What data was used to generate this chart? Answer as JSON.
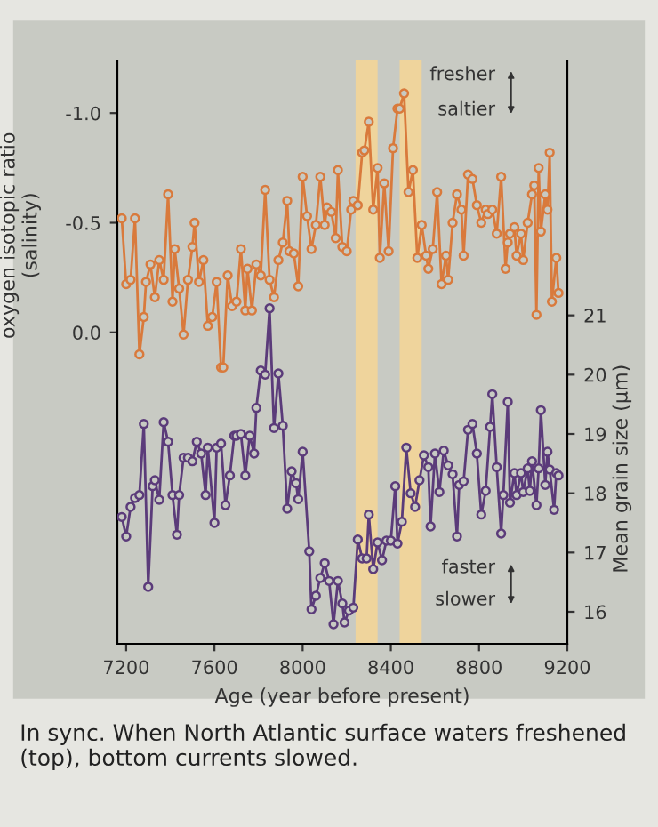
{
  "chart_data": {
    "type": "line",
    "marker": "circle",
    "line_style": "solid",
    "grid": false,
    "legend": false,
    "ylabel": "oxygen isotopic ratio\n(salinity)",
    "y2label": "Mean grain size (µm)",
    "xlabel": "Age (year before present)",
    "xlim": [
      7160,
      9200
    ],
    "xticks": [
      7200,
      7600,
      8000,
      8400,
      8800,
      9200
    ],
    "ylim": [
      1.42,
      -1.24
    ],
    "yticks": [
      {
        "value": -1.0,
        "label": "-1.0"
      },
      -0.5,
      {
        "value": 0.0,
        "label": "0.0"
      }
    ],
    "y2lim": [
      15.46,
      25.3
    ],
    "y2ticks": [
      16,
      17,
      18,
      19,
      20,
      21
    ],
    "bands": [
      {
        "axis": "x",
        "from": 8240,
        "to": 8340,
        "color": "#efd49c"
      },
      {
        "axis": "x",
        "from": 8440,
        "to": 8540,
        "color": "#efd49c"
      }
    ],
    "annotations": [
      "fresher",
      "saltier",
      "faster",
      "slower",
      "In sync. When North Atlantic surface waters freshened (top), bottom currents slowed."
    ],
    "series": [
      {
        "color": "#d97a3c",
        "x": [
          7180,
          7200,
          7220,
          7240,
          7260,
          7280,
          7290,
          7310,
          7330,
          7350,
          7370,
          7390,
          7410,
          7420,
          7440,
          7460,
          7480,
          7500,
          7510,
          7530,
          7550,
          7570,
          7590,
          7610,
          7630,
          7640,
          7660,
          7680,
          7700,
          7720,
          7740,
          7750,
          7770,
          7790,
          7810,
          7830,
          7850,
          7870,
          7890,
          7910,
          7930,
          7940,
          7960,
          7980,
          8000,
          8020,
          8040,
          8060,
          8080,
          8100,
          8110,
          8130,
          8150,
          8160,
          8180,
          8200,
          8220,
          8230,
          8250,
          8270,
          8280,
          8300,
          8320,
          8340,
          8350,
          8370,
          8390,
          8410,
          8430,
          8440,
          8460,
          8480,
          8500,
          8520,
          8540,
          8560,
          8570,
          8590,
          8610,
          8630,
          8650,
          8660,
          8680,
          8700,
          8720,
          8730,
          8750,
          8770,
          8790,
          8810,
          8830,
          8840,
          8860,
          8880,
          8900,
          8920,
          8930,
          8940,
          8960,
          8970,
          8990,
          9000,
          9020,
          9040,
          9050,
          9060,
          9070,
          9080,
          9100,
          9110,
          9120,
          9130,
          9150,
          9160
        ],
        "values": [
          -0.52,
          -0.22,
          -0.24,
          -0.52,
          0.1,
          -0.07,
          -0.23,
          -0.31,
          -0.16,
          -0.33,
          -0.24,
          -0.63,
          -0.14,
          -0.38,
          -0.2,
          0.01,
          -0.24,
          -0.39,
          -0.5,
          -0.23,
          -0.33,
          -0.03,
          -0.07,
          -0.23,
          0.16,
          0.16,
          -0.26,
          -0.12,
          -0.14,
          -0.38,
          -0.1,
          -0.29,
          -0.1,
          -0.31,
          -0.26,
          -0.65,
          -0.24,
          -0.16,
          -0.33,
          -0.41,
          -0.6,
          -0.37,
          -0.36,
          -0.21,
          -0.71,
          -0.53,
          -0.38,
          -0.49,
          -0.71,
          -0.49,
          -0.57,
          -0.55,
          -0.43,
          -0.74,
          -0.39,
          -0.37,
          -0.56,
          -0.6,
          -0.58,
          -0.82,
          -0.83,
          -0.96,
          -0.56,
          -0.75,
          -0.34,
          -0.68,
          -0.37,
          -0.84,
          -1.02,
          -1.02,
          -1.09,
          -0.64,
          -0.74,
          -0.34,
          -0.49,
          -0.35,
          -0.29,
          -0.38,
          -0.64,
          -0.22,
          -0.35,
          -0.24,
          -0.5,
          -0.63,
          -0.56,
          -0.35,
          -0.72,
          -0.7,
          -0.58,
          -0.5,
          -0.56,
          -0.54,
          -0.56,
          -0.45,
          -0.71,
          -0.29,
          -0.41,
          -0.45,
          -0.48,
          -0.35,
          -0.45,
          -0.33,
          -0.5,
          -0.63,
          -0.67,
          -0.08,
          -0.75,
          -0.46,
          -0.63,
          -0.56,
          -0.82,
          -0.14,
          -0.34,
          -0.18
        ]
      },
      {
        "color": "#5b3b7a",
        "axis": "y2",
        "x": [
          7180,
          7200,
          7220,
          7240,
          7260,
          7280,
          7300,
          7320,
          7330,
          7350,
          7370,
          7390,
          7410,
          7430,
          7440,
          7460,
          7480,
          7500,
          7520,
          7540,
          7560,
          7570,
          7600,
          7610,
          7630,
          7650,
          7670,
          7690,
          7700,
          7720,
          7740,
          7760,
          7780,
          7790,
          7810,
          7830,
          7850,
          7870,
          7890,
          7910,
          7930,
          7950,
          7970,
          7980,
          8000,
          8030,
          8040,
          8060,
          8080,
          8100,
          8120,
          8140,
          8160,
          8180,
          8190,
          8210,
          8230,
          8250,
          8270,
          8290,
          8300,
          8320,
          8340,
          8360,
          8380,
          8400,
          8420,
          8430,
          8450,
          8470,
          8490,
          8510,
          8530,
          8550,
          8570,
          8580,
          8600,
          8620,
          8640,
          8660,
          8680,
          8700,
          8710,
          8730,
          8750,
          8770,
          8790,
          8810,
          8830,
          8850,
          8860,
          8880,
          8900,
          8910,
          8930,
          8940,
          8960,
          8970,
          8990,
          9000,
          9020,
          9030,
          9040,
          9060,
          9070,
          9080,
          9100,
          9110,
          9120,
          9140,
          9150,
          9160
        ],
        "values": [
          17.6,
          17.27,
          17.77,
          17.92,
          17.97,
          19.17,
          16.42,
          18.12,
          18.22,
          17.89,
          19.2,
          18.87,
          17.97,
          17.3,
          17.97,
          18.6,
          18.6,
          18.54,
          18.87,
          18.67,
          17.97,
          18.77,
          17.5,
          18.77,
          18.84,
          17.8,
          18.3,
          18.97,
          18.97,
          19.0,
          18.3,
          18.97,
          18.67,
          19.44,
          20.07,
          20.0,
          21.12,
          19.1,
          20.02,
          19.14,
          17.74,
          18.37,
          18.17,
          17.9,
          18.7,
          17.02,
          16.04,
          16.27,
          16.57,
          16.82,
          16.52,
          15.79,
          16.52,
          16.14,
          15.82,
          16.02,
          16.07,
          17.22,
          16.9,
          16.9,
          17.64,
          16.72,
          17.17,
          16.87,
          17.2,
          17.2,
          18.12,
          17.15,
          17.52,
          18.77,
          18.0,
          17.77,
          18.22,
          18.64,
          18.44,
          17.44,
          18.67,
          18.02,
          18.72,
          18.47,
          18.32,
          17.27,
          18.14,
          18.2,
          19.07,
          19.17,
          18.67,
          17.64,
          18.04,
          19.12,
          19.67,
          18.44,
          17.32,
          17.97,
          19.54,
          17.84,
          18.34,
          17.97,
          18.34,
          18.02,
          18.42,
          18.04,
          18.54,
          17.8,
          18.42,
          19.4,
          18.14,
          18.7,
          18.4,
          17.72,
          18.34,
          18.3
        ]
      }
    ]
  }
}
